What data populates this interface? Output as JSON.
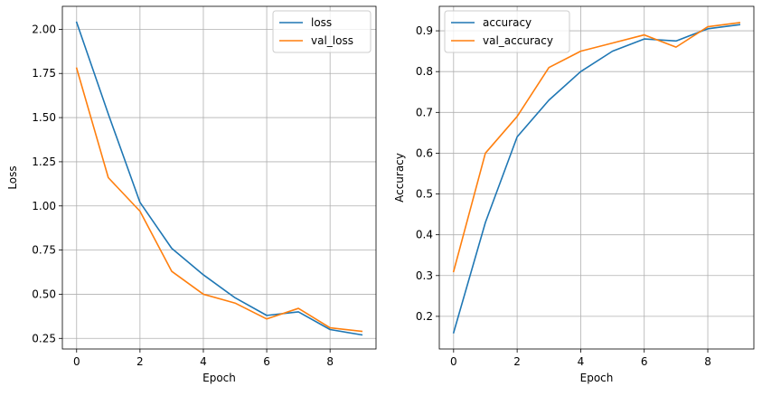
{
  "chart_data": [
    {
      "type": "line",
      "title": "",
      "xlabel": "Epoch",
      "ylabel": "Loss",
      "xlim": [
        -0.45,
        9.45
      ],
      "ylim": [
        0.19,
        2.13
      ],
      "xticks": [
        0,
        2,
        4,
        6,
        8
      ],
      "xtick_labels": [
        "0",
        "2",
        "4",
        "6",
        "8"
      ],
      "yticks": [
        0.25,
        0.5,
        0.75,
        1.0,
        1.25,
        1.5,
        1.75,
        2.0
      ],
      "ytick_labels": [
        "0.25",
        "0.50",
        "0.75",
        "1.00",
        "1.25",
        "1.50",
        "1.75",
        "2.00"
      ],
      "grid": true,
      "legend_position": "top-right",
      "x": [
        0,
        1,
        2,
        3,
        4,
        5,
        6,
        7,
        8,
        9
      ],
      "series": [
        {
          "name": "loss",
          "color": "#1f77b4",
          "values": [
            2.04,
            1.52,
            1.02,
            0.76,
            0.61,
            0.48,
            0.38,
            0.4,
            0.3,
            0.27
          ]
        },
        {
          "name": "val_loss",
          "color": "#ff7f0e",
          "values": [
            1.78,
            1.16,
            0.97,
            0.63,
            0.5,
            0.45,
            0.36,
            0.42,
            0.31,
            0.29
          ]
        }
      ]
    },
    {
      "type": "line",
      "title": "",
      "xlabel": "Epoch",
      "ylabel": "Accuracy",
      "xlim": [
        -0.45,
        9.45
      ],
      "ylim": [
        0.12,
        0.96
      ],
      "xticks": [
        0,
        2,
        4,
        6,
        8
      ],
      "xtick_labels": [
        "0",
        "2",
        "4",
        "6",
        "8"
      ],
      "yticks": [
        0.2,
        0.3,
        0.4,
        0.5,
        0.6,
        0.7,
        0.8,
        0.9
      ],
      "ytick_labels": [
        "0.2",
        "0.3",
        "0.4",
        "0.5",
        "0.6",
        "0.7",
        "0.8",
        "0.9"
      ],
      "grid": true,
      "legend_position": "top-left",
      "x": [
        0,
        1,
        2,
        3,
        4,
        5,
        6,
        7,
        8,
        9
      ],
      "series": [
        {
          "name": "accuracy",
          "color": "#1f77b4",
          "values": [
            0.16,
            0.43,
            0.64,
            0.73,
            0.8,
            0.85,
            0.88,
            0.875,
            0.905,
            0.915
          ]
        },
        {
          "name": "val_accuracy",
          "color": "#ff7f0e",
          "values": [
            0.31,
            0.6,
            0.69,
            0.81,
            0.85,
            0.87,
            0.89,
            0.86,
            0.91,
            0.92
          ]
        }
      ]
    }
  ]
}
